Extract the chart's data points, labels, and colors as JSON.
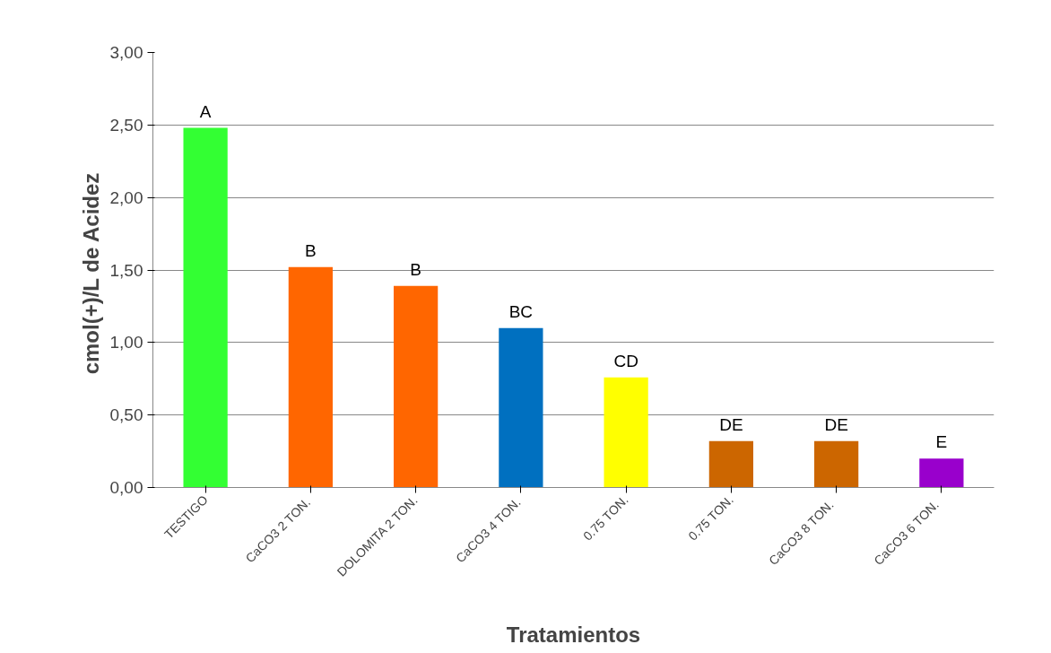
{
  "chart_data": {
    "type": "bar",
    "xlabel": "Tratamientos",
    "ylabel": "cmol(+)/L de  Acidez",
    "categories": [
      "TESTIGO",
      "CaCO3  2 TON.",
      "DOLOMITA 2 TON.",
      "CaCO3  4 TON.",
      "0.75 TON.",
      "0.75 TON.",
      "CaCO3   8 TON.",
      "CaCO3   6 TON."
    ],
    "values": [
      2.48,
      1.52,
      1.39,
      1.1,
      0.76,
      0.32,
      0.32,
      0.2
    ],
    "colors": [
      "#33ff33",
      "#ff6600",
      "#ff6600",
      "#0070c0",
      "#ffff00",
      "#cc6600",
      "#cc6600",
      "#9900cc"
    ],
    "value_labels": [
      "A",
      "B",
      "B",
      "BC",
      "CD",
      "DE",
      "DE",
      "E"
    ],
    "ylim": [
      0,
      3
    ],
    "yticks": [
      {
        "value": 0,
        "label": "0,00"
      },
      {
        "value": 0.5,
        "label": "0,50"
      },
      {
        "value": 1,
        "label": "1,00"
      },
      {
        "value": 1.5,
        "label": "1,50"
      },
      {
        "value": 2,
        "label": "2,00"
      },
      {
        "value": 2.5,
        "label": "2,50"
      },
      {
        "value": 3,
        "label": "3,00"
      }
    ],
    "grid": "y"
  }
}
